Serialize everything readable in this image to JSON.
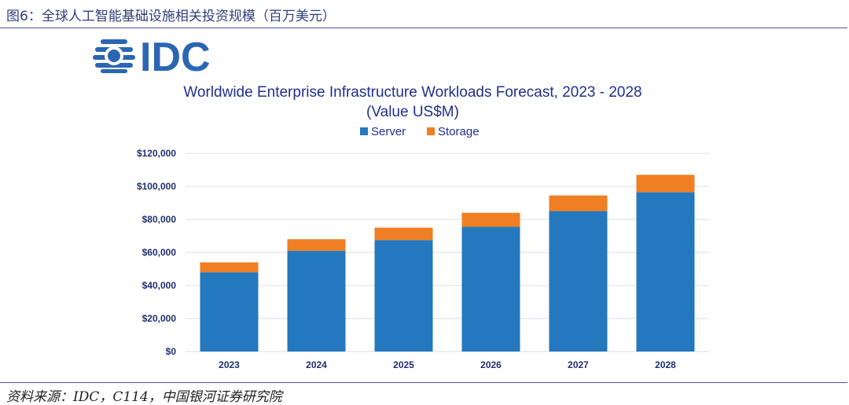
{
  "figure_caption": "图6：全球人工智能基础设施相关投资规模（百万美元）",
  "source_note": "资料来源：IDC，C114，中国银河证券研究院",
  "logo_text": "IDC",
  "colors": {
    "server": "#2478be",
    "storage": "#f07f23",
    "grid": "#d9dde8",
    "title": "#1f2f8f"
  },
  "chart_data": {
    "type": "bar",
    "stacked": true,
    "title": "Worldwide Enterprise Infrastructure Workloads Forecast, 2023 - 2028",
    "subtitle": "(Value US$M)",
    "categories": [
      "2023",
      "2024",
      "2025",
      "2026",
      "2027",
      "2028"
    ],
    "series": [
      {
        "name": "Server",
        "color": "#2478be",
        "values": [
          48000,
          61000,
          67500,
          75500,
          85000,
          96500
        ]
      },
      {
        "name": "Storage",
        "color": "#f07f23",
        "values": [
          6000,
          7000,
          7500,
          8500,
          9500,
          10500
        ]
      }
    ],
    "ylim": [
      0,
      120000
    ],
    "yticks": [
      "$0",
      "$20,000",
      "$40,000",
      "$60,000",
      "$80,000",
      "$100,000",
      "$120,000"
    ],
    "ytick_values": [
      0,
      20000,
      40000,
      60000,
      80000,
      100000,
      120000
    ],
    "grid": true,
    "legend_position": "top-center"
  }
}
